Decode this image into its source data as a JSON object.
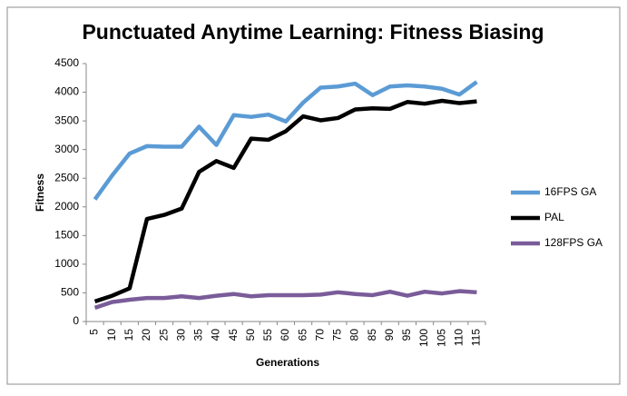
{
  "chart_data": {
    "type": "line",
    "title": "Punctuated Anytime Learning: Fitness Biasing",
    "x_label": "Generations",
    "y_label": "Fitness",
    "categories": [
      5,
      10,
      15,
      20,
      25,
      30,
      35,
      40,
      45,
      50,
      55,
      60,
      65,
      70,
      75,
      80,
      85,
      90,
      95,
      100,
      105,
      110,
      115
    ],
    "series": [
      {
        "name": "16FPS GA",
        "color": "#5b9bd5",
        "values": [
          2130,
          2550,
          2930,
          3060,
          3050,
          3050,
          3400,
          3080,
          3600,
          3570,
          3610,
          3490,
          3820,
          4080,
          4100,
          4150,
          3950,
          4100,
          4120,
          4100,
          4060,
          3960,
          4180
        ]
      },
      {
        "name": "PAL",
        "color": "#000000",
        "values": [
          350,
          450,
          580,
          1790,
          1860,
          1970,
          2610,
          2800,
          2680,
          3190,
          3170,
          3320,
          3580,
          3510,
          3550,
          3700,
          3720,
          3710,
          3830,
          3800,
          3850,
          3810,
          3840
        ]
      },
      {
        "name": "128FPS GA",
        "color": "#7a5c99",
        "values": [
          240,
          340,
          380,
          410,
          410,
          440,
          410,
          450,
          480,
          440,
          460,
          460,
          460,
          470,
          510,
          480,
          460,
          520,
          450,
          520,
          490,
          530,
          510
        ]
      }
    ],
    "ylim": [
      0,
      4500
    ],
    "yticks": [
      0,
      500,
      1000,
      1500,
      2000,
      2500,
      3000,
      3500,
      4000,
      4500
    ],
    "grid": false,
    "legend": "right"
  }
}
